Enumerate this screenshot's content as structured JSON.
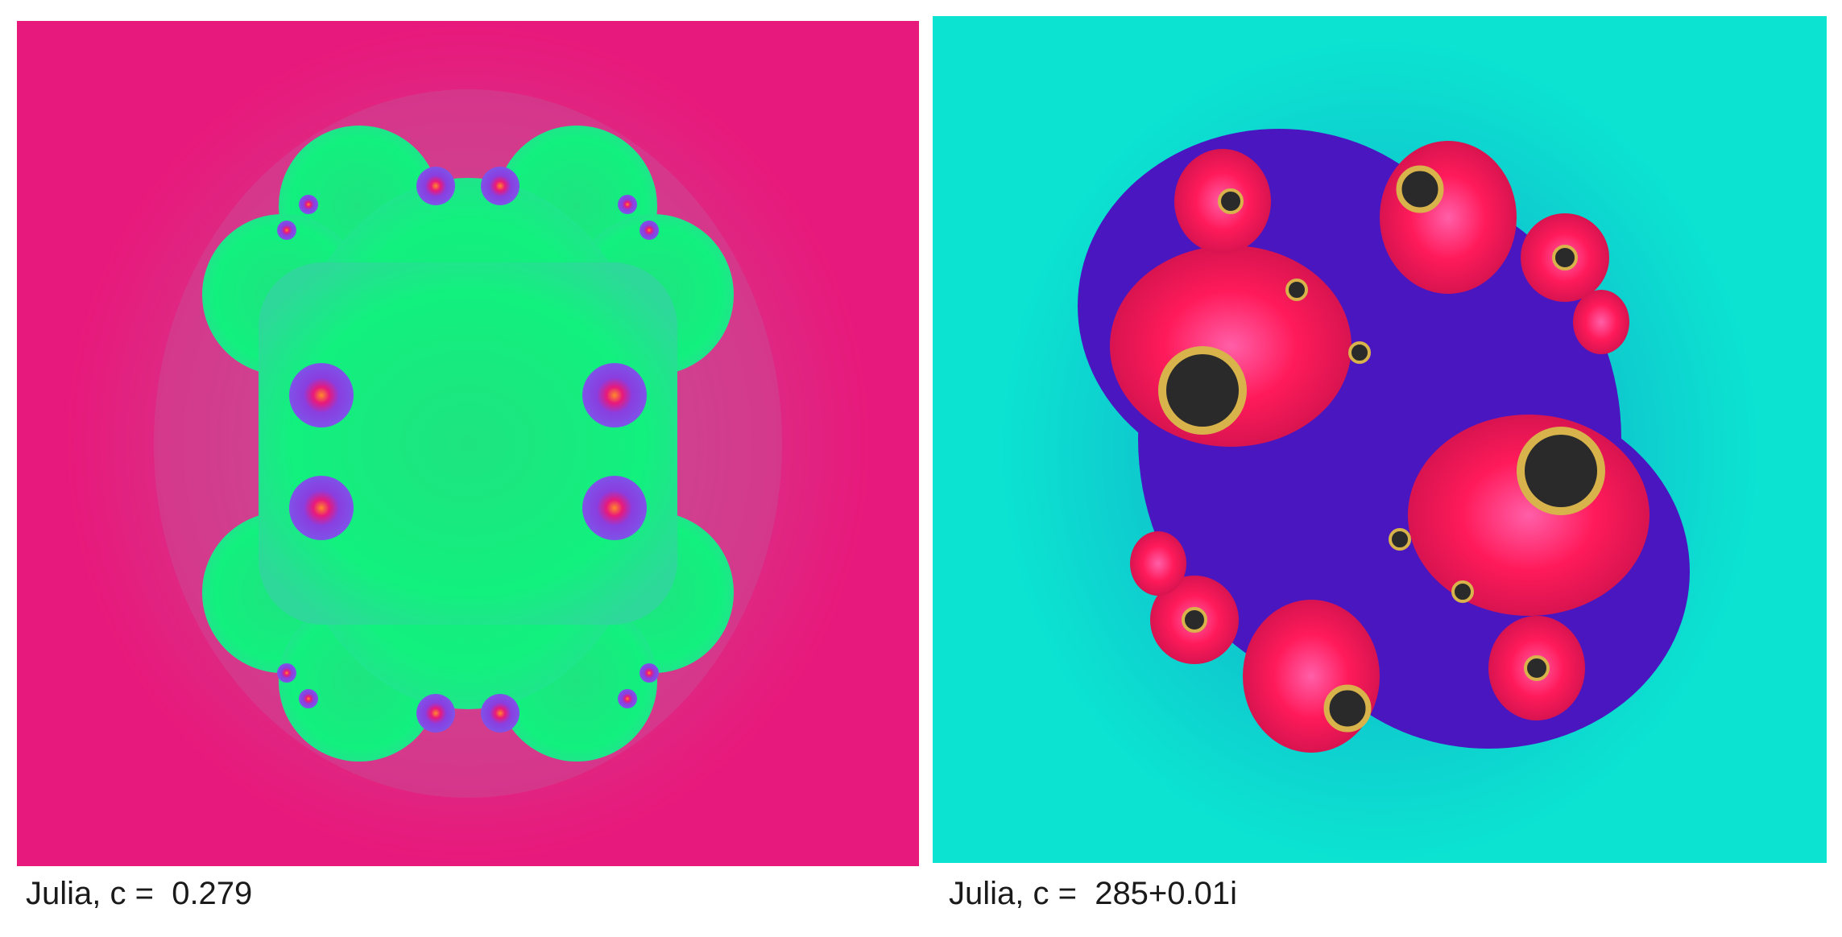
{
  "panels": [
    {
      "caption": "Julia, c =  0.279",
      "background_color": "#e8197c",
      "interior_color": "#12f07e",
      "accent_color": "#8a3ee0"
    },
    {
      "caption": "Julia, c =  285+0.01i",
      "background_color": "#0ce3d1",
      "interior_color": "#4a16c0",
      "accent_color": "#ff1a5a"
    }
  ]
}
